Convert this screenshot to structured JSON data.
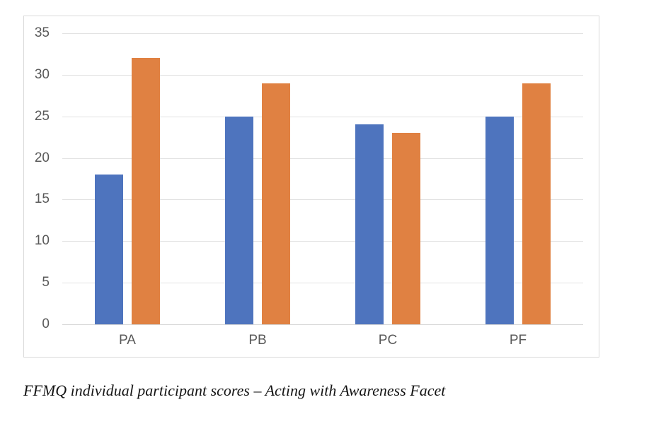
{
  "chart_data": {
    "type": "bar",
    "title": "",
    "xlabel": "",
    "ylabel": "",
    "categories": [
      "PA",
      "PB",
      "PC",
      "PF"
    ],
    "series": [
      {
        "name": "blue-series",
        "color": "#4e74be",
        "values": [
          18,
          25,
          24,
          25
        ]
      },
      {
        "name": "orange-series",
        "color": "#e08142",
        "values": [
          32,
          29,
          23,
          29
        ]
      }
    ],
    "ylim": [
      0,
      35
    ],
    "yticks": [
      0,
      5,
      10,
      15,
      20,
      25,
      30,
      35
    ],
    "grid": true,
    "legend_position": "none"
  },
  "caption": "FFMQ individual participant scores – Acting with Awareness Facet",
  "colors": {
    "gridline": "#e2e2e2",
    "axis_line": "#d6d6d6",
    "frame_border": "#d9d9d9",
    "tick_label": "#595959",
    "background": "#ffffff"
  }
}
